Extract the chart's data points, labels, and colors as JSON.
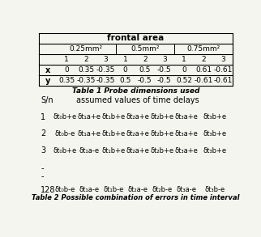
{
  "table1_caption": "Table 1 Probe dimensions used",
  "table2_caption": "Table 2 Possible combination of errors in time interval",
  "header1": "frontal area",
  "header2": [
    "0.25mm²",
    "0.5mm²",
    "0.75mm²"
  ],
  "header3": [
    "1",
    "2",
    "3",
    "1",
    "2",
    "3",
    "1",
    "2",
    "3"
  ],
  "row_x": [
    "x",
    "0",
    "0.35",
    "-0.35",
    "0",
    "0.5",
    "-0.5",
    "0",
    "0.61",
    "-0.61"
  ],
  "row_y": [
    "y",
    "0.35",
    "-0.35",
    "-0.35",
    "0.5",
    "-0.5",
    "-0.5",
    "0.52",
    "-0.61",
    "-0.61"
  ],
  "sn_label": "S/n",
  "assumed_label": "assumed values of time delays",
  "table2_rows": [
    [
      "1",
      "δt₀b+e",
      "δt₁a+e",
      "δt₁b+e",
      "δt₂a+e",
      "δt₂b+e",
      "δt₃a+e",
      "δt₃b+e"
    ],
    [
      "2",
      "δt₀b-e",
      "δt₁a+e",
      "δt₁b+e",
      "δt₂a+e",
      "δt₂b+e",
      "δt₃a+e",
      "δt₃b+e"
    ],
    [
      "3",
      "δt₀b+e",
      "δt₁a-e",
      "δt₁b+e",
      "δt₂a+e",
      "δt₂b+e",
      "δt₃a+e",
      "δt₃b+e"
    ],
    [
      "128",
      "δt₀b-e",
      "δt₁a-e",
      "δt₁b-e",
      "δt₂a-e",
      "δt₂b-e",
      "δt₃a-e",
      "δt₃b-e"
    ]
  ],
  "bg_color": "#f5f5f0",
  "text_color": "#1a1a1a"
}
